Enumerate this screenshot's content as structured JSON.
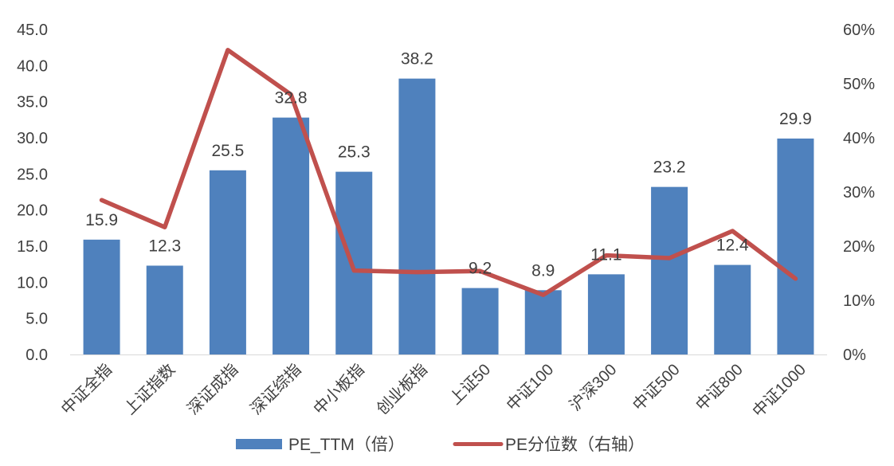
{
  "chart_data": {
    "type": "bar",
    "title": "",
    "xlabel": "",
    "ylabel": "",
    "categories": [
      "中证全指",
      "上证指数",
      "深证成指",
      "深证综指",
      "中小板指",
      "创业板指",
      "上证50",
      "中证100",
      "沪深300",
      "中证500",
      "中证800",
      "中证1000"
    ],
    "series": [
      {
        "name": "PE_TTM（倍）",
        "type": "bar",
        "axis": "left",
        "color": "#4F81BD",
        "values": [
          15.9,
          12.3,
          25.5,
          32.8,
          25.3,
          38.2,
          9.2,
          8.9,
          11.1,
          23.2,
          12.4,
          29.9
        ],
        "labels": [
          "15.9",
          "12.3",
          "25.5",
          "32.8",
          "25.3",
          "38.2",
          "9.2",
          "8.9",
          "11.1",
          "23.2",
          "12.4",
          "29.9"
        ]
      },
      {
        "name": "PE分位数（右轴）",
        "type": "line",
        "axis": "right",
        "color": "#C0504D",
        "values": [
          0.285,
          0.235,
          0.562,
          0.48,
          0.155,
          0.152,
          0.154,
          0.11,
          0.183,
          0.178,
          0.228,
          0.14
        ]
      }
    ],
    "y_left": {
      "ylim": [
        0,
        45
      ],
      "ticks": [
        0,
        5,
        10,
        15,
        20,
        25,
        30,
        35,
        40,
        45
      ],
      "tick_labels": [
        "0.0",
        "5.0",
        "10.0",
        "15.0",
        "20.0",
        "25.0",
        "30.0",
        "35.0",
        "40.0",
        "45.0"
      ]
    },
    "y_right": {
      "ylim": [
        0,
        0.6
      ],
      "ticks": [
        0,
        0.1,
        0.2,
        0.3,
        0.4,
        0.5,
        0.6
      ],
      "tick_labels": [
        "0%",
        "10%",
        "20%",
        "30%",
        "40%",
        "50%",
        "60%"
      ]
    },
    "grid": false,
    "legend": "bottom"
  }
}
